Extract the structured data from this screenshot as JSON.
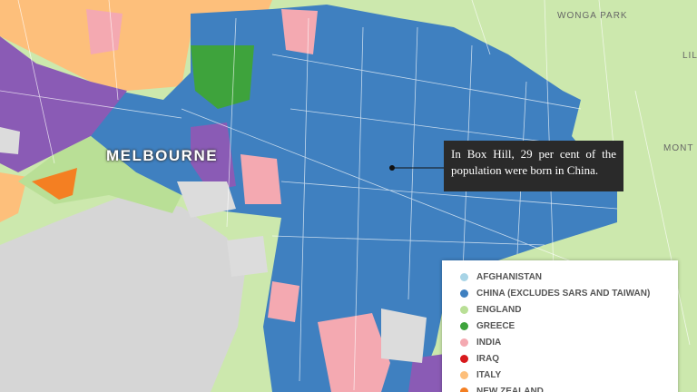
{
  "place_labels": [
    "WONGA PARK",
    "MELBOURNE",
    "MONT",
    "LIL"
  ],
  "annotation": "In Box Hill, 29 per cent of the population were born in China.",
  "legend": [
    {
      "name": "AFGHANISTAN",
      "color": "#a8d4e6"
    },
    {
      "name": "CHINA (EXCLUDES SARS AND TAIWAN)",
      "color": "#3f80c0"
    },
    {
      "name": "ENGLAND",
      "color": "#b9df96"
    },
    {
      "name": "GREECE",
      "color": "#3ea33c"
    },
    {
      "name": "INDIA",
      "color": "#f4a9b1"
    },
    {
      "name": "IRAQ",
      "color": "#d7191c"
    },
    {
      "name": "ITALY",
      "color": "#fdbf7b"
    },
    {
      "name": "NEW ZEALAND",
      "color": "#f47f22"
    }
  ]
}
